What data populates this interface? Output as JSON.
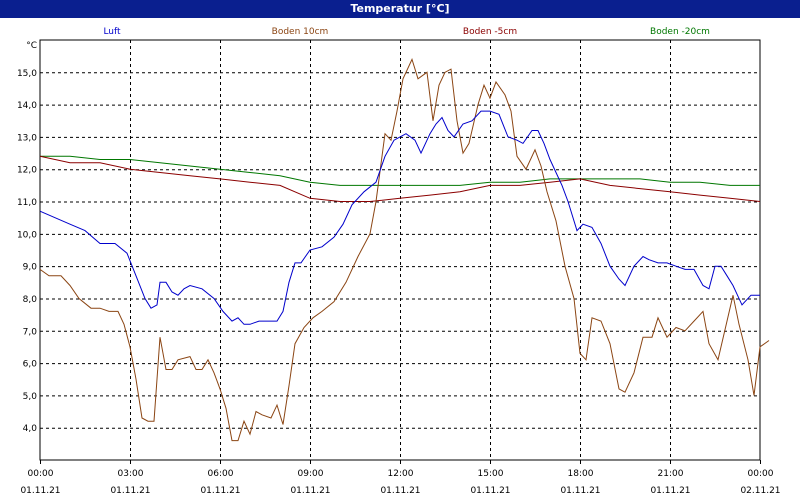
{
  "window": {
    "title": "Temperatur [°C]"
  },
  "chart_data": {
    "type": "line",
    "title": "Temperatur [°C]",
    "ylabel": "°C",
    "xlim_hours": [
      0,
      24
    ],
    "ylim": [
      3.0,
      16.0
    ],
    "grid": true,
    "legend_placement": "top",
    "y_ticks": [
      "4,0",
      "5,0",
      "6,0",
      "7,0",
      "8,0",
      "9,0",
      "10,0",
      "11,0",
      "12,0",
      "13,0",
      "14,0",
      "15,0"
    ],
    "y_tick_values": [
      4,
      5,
      6,
      7,
      8,
      9,
      10,
      11,
      12,
      13,
      14,
      15
    ],
    "x_ticks": [
      {
        "time": "00:00",
        "date": "01.11.21"
      },
      {
        "time": "03:00",
        "date": "01.11.21"
      },
      {
        "time": "06:00",
        "date": "01.11.21"
      },
      {
        "time": "09:00",
        "date": "01.11.21"
      },
      {
        "time": "12:00",
        "date": "01.11.21"
      },
      {
        "time": "15:00",
        "date": "01.11.21"
      },
      {
        "time": "18:00",
        "date": "01.11.21"
      },
      {
        "time": "21:00",
        "date": "01.11.21"
      },
      {
        "time": "00:00",
        "date": "02.11.21"
      }
    ],
    "series": [
      {
        "name": "Luft",
        "color": "#0000cc",
        "points": [
          [
            0,
            10.7
          ],
          [
            0.5,
            10.5
          ],
          [
            1.0,
            10.3
          ],
          [
            1.5,
            10.1
          ],
          [
            2.0,
            9.7
          ],
          [
            2.5,
            9.7
          ],
          [
            2.9,
            9.4
          ],
          [
            3.2,
            8.7
          ],
          [
            3.5,
            8.0
          ],
          [
            3.7,
            7.7
          ],
          [
            3.9,
            7.8
          ],
          [
            4.0,
            8.5
          ],
          [
            4.2,
            8.5
          ],
          [
            4.4,
            8.2
          ],
          [
            4.6,
            8.1
          ],
          [
            4.8,
            8.3
          ],
          [
            5.0,
            8.4
          ],
          [
            5.4,
            8.3
          ],
          [
            5.8,
            8.0
          ],
          [
            6.1,
            7.6
          ],
          [
            6.4,
            7.3
          ],
          [
            6.6,
            7.4
          ],
          [
            6.8,
            7.2
          ],
          [
            7.0,
            7.2
          ],
          [
            7.3,
            7.3
          ],
          [
            7.6,
            7.3
          ],
          [
            7.9,
            7.3
          ],
          [
            8.1,
            7.6
          ],
          [
            8.3,
            8.5
          ],
          [
            8.5,
            9.1
          ],
          [
            8.7,
            9.1
          ],
          [
            9.0,
            9.5
          ],
          [
            9.4,
            9.6
          ],
          [
            9.8,
            9.9
          ],
          [
            10.1,
            10.3
          ],
          [
            10.4,
            10.9
          ],
          [
            10.8,
            11.3
          ],
          [
            11.2,
            11.6
          ],
          [
            11.5,
            12.4
          ],
          [
            11.8,
            12.9
          ],
          [
            12.2,
            13.1
          ],
          [
            12.5,
            12.9
          ],
          [
            12.7,
            12.5
          ],
          [
            13.0,
            13.1
          ],
          [
            13.2,
            13.4
          ],
          [
            13.4,
            13.6
          ],
          [
            13.6,
            13.2
          ],
          [
            13.8,
            13.0
          ],
          [
            14.1,
            13.4
          ],
          [
            14.4,
            13.5
          ],
          [
            14.7,
            13.8
          ],
          [
            15.0,
            13.8
          ],
          [
            15.3,
            13.7
          ],
          [
            15.6,
            13.0
          ],
          [
            15.9,
            12.9
          ],
          [
            16.1,
            12.8
          ],
          [
            16.4,
            13.2
          ],
          [
            16.6,
            13.2
          ],
          [
            16.8,
            12.8
          ],
          [
            17.0,
            12.3
          ],
          [
            17.2,
            11.9
          ],
          [
            17.4,
            11.5
          ],
          [
            17.6,
            11.0
          ],
          [
            17.9,
            10.1
          ],
          [
            18.1,
            10.3
          ],
          [
            18.4,
            10.2
          ],
          [
            18.7,
            9.7
          ],
          [
            19.0,
            9.0
          ],
          [
            19.3,
            8.6
          ],
          [
            19.5,
            8.4
          ],
          [
            19.8,
            9.0
          ],
          [
            20.1,
            9.3
          ],
          [
            20.3,
            9.2
          ],
          [
            20.6,
            9.1
          ],
          [
            20.9,
            9.1
          ],
          [
            21.2,
            9.0
          ],
          [
            21.5,
            8.9
          ],
          [
            21.8,
            8.9
          ],
          [
            22.1,
            8.4
          ],
          [
            22.3,
            8.3
          ],
          [
            22.5,
            9.0
          ],
          [
            22.7,
            9.0
          ],
          [
            22.9,
            8.7
          ],
          [
            23.1,
            8.4
          ],
          [
            23.4,
            7.8
          ],
          [
            23.7,
            8.1
          ],
          [
            24.0,
            8.1
          ]
        ]
      },
      {
        "name": "Boden 10cm",
        "color": "#8b4513",
        "points": [
          [
            0,
            8.9
          ],
          [
            0.3,
            8.7
          ],
          [
            0.7,
            8.7
          ],
          [
            1.0,
            8.4
          ],
          [
            1.3,
            8.0
          ],
          [
            1.7,
            7.7
          ],
          [
            2.0,
            7.7
          ],
          [
            2.3,
            7.6
          ],
          [
            2.6,
            7.6
          ],
          [
            2.8,
            7.2
          ],
          [
            3.0,
            6.5
          ],
          [
            3.2,
            5.5
          ],
          [
            3.4,
            4.3
          ],
          [
            3.6,
            4.2
          ],
          [
            3.8,
            4.2
          ],
          [
            4.0,
            6.8
          ],
          [
            4.2,
            5.8
          ],
          [
            4.4,
            5.8
          ],
          [
            4.6,
            6.1
          ],
          [
            5.0,
            6.2
          ],
          [
            5.2,
            5.8
          ],
          [
            5.4,
            5.8
          ],
          [
            5.6,
            6.1
          ],
          [
            5.8,
            5.7
          ],
          [
            6.0,
            5.2
          ],
          [
            6.2,
            4.6
          ],
          [
            6.4,
            3.6
          ],
          [
            6.6,
            3.6
          ],
          [
            6.8,
            4.2
          ],
          [
            7.0,
            3.8
          ],
          [
            7.2,
            4.5
          ],
          [
            7.4,
            4.4
          ],
          [
            7.7,
            4.3
          ],
          [
            7.9,
            4.7
          ],
          [
            8.1,
            4.1
          ],
          [
            8.3,
            5.3
          ],
          [
            8.5,
            6.6
          ],
          [
            8.8,
            7.1
          ],
          [
            9.1,
            7.4
          ],
          [
            9.4,
            7.6
          ],
          [
            9.8,
            7.9
          ],
          [
            10.2,
            8.5
          ],
          [
            10.6,
            9.3
          ],
          [
            11.0,
            10.0
          ],
          [
            11.2,
            11.0
          ],
          [
            11.5,
            13.1
          ],
          [
            11.7,
            12.9
          ],
          [
            11.9,
            13.8
          ],
          [
            12.1,
            14.8
          ],
          [
            12.4,
            15.4
          ],
          [
            12.6,
            14.8
          ],
          [
            12.9,
            15.0
          ],
          [
            13.1,
            13.5
          ],
          [
            13.3,
            14.6
          ],
          [
            13.5,
            15.0
          ],
          [
            13.7,
            15.1
          ],
          [
            13.9,
            13.5
          ],
          [
            14.1,
            12.5
          ],
          [
            14.3,
            12.8
          ],
          [
            14.6,
            14.0
          ],
          [
            14.8,
            14.6
          ],
          [
            15.0,
            14.2
          ],
          [
            15.2,
            14.7
          ],
          [
            15.5,
            14.3
          ],
          [
            15.7,
            13.8
          ],
          [
            15.9,
            12.4
          ],
          [
            16.2,
            12.0
          ],
          [
            16.5,
            12.6
          ],
          [
            16.7,
            12.1
          ],
          [
            16.9,
            11.3
          ],
          [
            17.2,
            10.4
          ],
          [
            17.5,
            9.0
          ],
          [
            17.8,
            8.0
          ],
          [
            18.0,
            6.3
          ],
          [
            18.2,
            6.1
          ],
          [
            18.4,
            7.4
          ],
          [
            18.7,
            7.3
          ],
          [
            19.0,
            6.6
          ],
          [
            19.3,
            5.2
          ],
          [
            19.5,
            5.1
          ],
          [
            19.8,
            5.7
          ],
          [
            20.1,
            6.8
          ],
          [
            20.4,
            6.8
          ],
          [
            20.6,
            7.4
          ],
          [
            20.9,
            6.8
          ],
          [
            21.2,
            7.1
          ],
          [
            21.5,
            7.0
          ],
          [
            21.8,
            7.3
          ],
          [
            22.1,
            7.6
          ],
          [
            22.3,
            6.6
          ],
          [
            22.6,
            6.1
          ],
          [
            22.9,
            7.3
          ],
          [
            23.1,
            8.1
          ],
          [
            23.3,
            7.2
          ],
          [
            23.6,
            6.1
          ],
          [
            23.8,
            5.0
          ],
          [
            24.0,
            6.5
          ],
          [
            24.3,
            6.7
          ]
        ]
      },
      {
        "name": "Boden -5cm",
        "color": "#8b0000",
        "points": [
          [
            0,
            12.4
          ],
          [
            1.0,
            12.2
          ],
          [
            2.0,
            12.2
          ],
          [
            3.0,
            12.0
          ],
          [
            4.0,
            11.9
          ],
          [
            5.0,
            11.8
          ],
          [
            6.0,
            11.7
          ],
          [
            7.0,
            11.6
          ],
          [
            8.0,
            11.5
          ],
          [
            9.0,
            11.1
          ],
          [
            10.0,
            11.0
          ],
          [
            11.0,
            11.0
          ],
          [
            12.0,
            11.1
          ],
          [
            13.0,
            11.2
          ],
          [
            14.0,
            11.3
          ],
          [
            15.0,
            11.5
          ],
          [
            16.0,
            11.5
          ],
          [
            17.0,
            11.6
          ],
          [
            18.0,
            11.7
          ],
          [
            19.0,
            11.5
          ],
          [
            20.0,
            11.4
          ],
          [
            21.0,
            11.3
          ],
          [
            22.0,
            11.2
          ],
          [
            23.0,
            11.1
          ],
          [
            24.0,
            11.0
          ]
        ]
      },
      {
        "name": "Boden -20cm",
        "color": "#007700",
        "points": [
          [
            0,
            12.4
          ],
          [
            1.0,
            12.4
          ],
          [
            2.0,
            12.3
          ],
          [
            3.0,
            12.3
          ],
          [
            4.0,
            12.2
          ],
          [
            5.0,
            12.1
          ],
          [
            6.0,
            12.0
          ],
          [
            7.0,
            11.9
          ],
          [
            8.0,
            11.8
          ],
          [
            9.0,
            11.6
          ],
          [
            10.0,
            11.5
          ],
          [
            11.0,
            11.5
          ],
          [
            12.0,
            11.5
          ],
          [
            13.0,
            11.5
          ],
          [
            14.0,
            11.5
          ],
          [
            15.0,
            11.6
          ],
          [
            16.0,
            11.6
          ],
          [
            17.0,
            11.7
          ],
          [
            18.0,
            11.7
          ],
          [
            19.0,
            11.7
          ],
          [
            20.0,
            11.7
          ],
          [
            21.0,
            11.6
          ],
          [
            22.0,
            11.6
          ],
          [
            23.0,
            11.5
          ],
          [
            24.0,
            11.5
          ]
        ]
      }
    ]
  }
}
